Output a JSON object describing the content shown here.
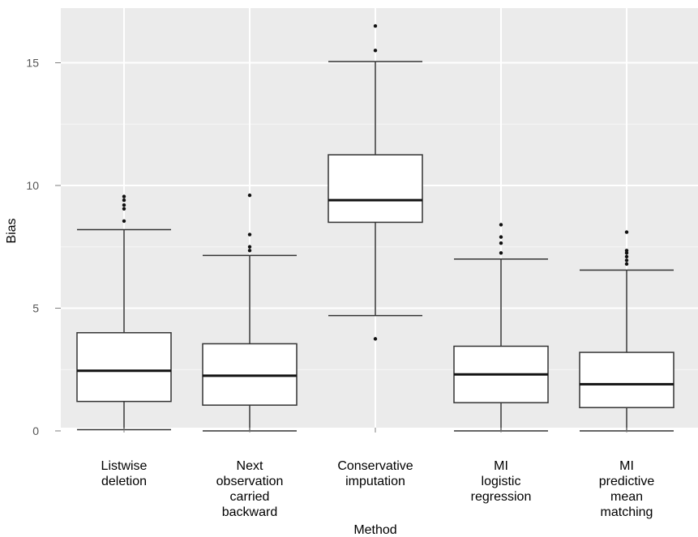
{
  "chart_data": {
    "type": "boxplot",
    "xlabel": "Method",
    "ylabel": "Bias",
    "ylim": [
      -0.3,
      16.8
    ],
    "yticks": [
      0,
      5,
      10,
      15
    ],
    "grid": true,
    "background": "#ebebeb",
    "gridline_color": "#ffffff",
    "categories": [
      [
        "Listwise",
        "deletion"
      ],
      [
        "Next",
        "observation",
        "carried",
        "backward"
      ],
      [
        "Conservative",
        "imputation"
      ],
      [
        "MI",
        "logistic",
        "regression"
      ],
      [
        "MI",
        "predictive",
        "mean",
        "matching"
      ]
    ],
    "boxes": [
      {
        "whisker_low": 0.05,
        "q1": 1.2,
        "median": 2.45,
        "q3": 4.0,
        "whisker_high": 8.2,
        "outliers": [
          8.55,
          9.05,
          9.2,
          9.4,
          9.55
        ]
      },
      {
        "whisker_low": 0.0,
        "q1": 1.05,
        "median": 2.25,
        "q3": 3.55,
        "whisker_high": 7.15,
        "outliers": [
          7.35,
          7.5,
          8.0,
          9.6
        ]
      },
      {
        "whisker_low": 4.7,
        "q1": 8.5,
        "median": 9.4,
        "q3": 11.25,
        "whisker_high": 15.05,
        "outliers": [
          3.75,
          15.5,
          16.5
        ]
      },
      {
        "whisker_low": 0.0,
        "q1": 1.15,
        "median": 2.3,
        "q3": 3.45,
        "whisker_high": 7.0,
        "outliers": [
          7.25,
          7.65,
          7.9,
          8.4
        ]
      },
      {
        "whisker_low": 0.0,
        "q1": 0.95,
        "median": 1.9,
        "q3": 3.2,
        "whisker_high": 6.55,
        "outliers": [
          6.8,
          6.95,
          7.1,
          7.25,
          7.35,
          8.1
        ]
      }
    ]
  }
}
